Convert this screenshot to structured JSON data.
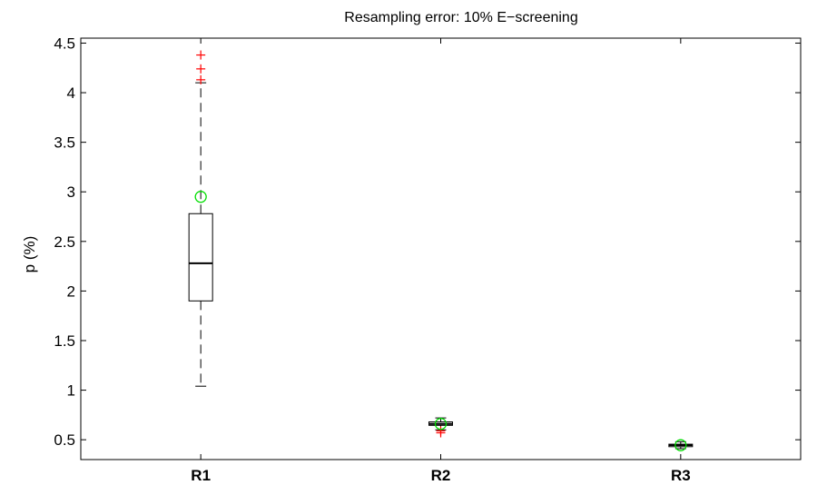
{
  "chart_data": {
    "type": "boxplot",
    "title": "Resampling error: 10% E−screening",
    "xlabel": "",
    "ylabel": "p (%)",
    "ylim": [
      0.3,
      4.55
    ],
    "yticks": [
      0.5,
      1,
      1.5,
      2,
      2.5,
      3,
      3.5,
      4,
      4.5
    ],
    "ytick_labels": [
      "0.5",
      "1",
      "1.5",
      "2",
      "2.5",
      "3",
      "3.5",
      "4",
      "4.5"
    ],
    "categories": [
      "R1",
      "R2",
      "R3"
    ],
    "grid": false,
    "series": [
      {
        "category": "R1",
        "whisker_low": 1.04,
        "q1": 1.9,
        "median": 2.28,
        "q3": 2.78,
        "whisker_high": 4.1,
        "outliers": [
          4.13,
          4.24,
          4.38
        ],
        "mean": 2.95
      },
      {
        "category": "R2",
        "whisker_low": 0.6,
        "q1": 0.645,
        "median": 0.66,
        "q3": 0.68,
        "whisker_high": 0.72,
        "outliers": [
          0.57,
          0.59
        ],
        "mean": 0.66
      },
      {
        "category": "R3",
        "whisker_low": 0.41,
        "q1": 0.43,
        "median": 0.445,
        "q3": 0.455,
        "whisker_high": 0.48,
        "outliers": [],
        "mean": 0.445
      }
    ],
    "colors": {
      "box": "#000000",
      "whisker": "#000000",
      "median": "#000000",
      "outlier": "#ff0000",
      "mean": "#00dd00"
    }
  }
}
